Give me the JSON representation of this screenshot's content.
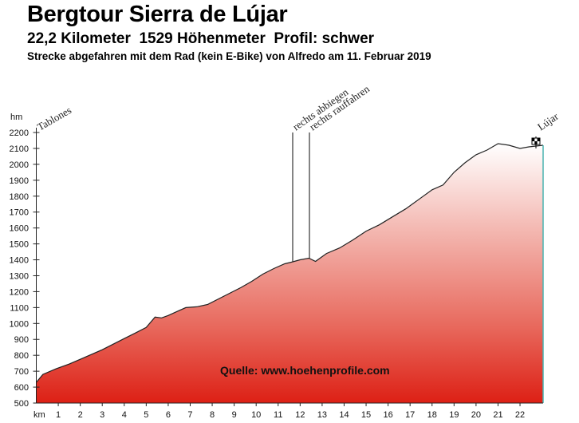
{
  "header": {
    "title": "Bergtour Sierra de Lújar",
    "subtitle": "22,2 Kilometer  1529 Höhenmeter  Profil: schwer",
    "description": "Strecke abgefahren mit dem Rad (kein E-Bike) von Alfredo am 11. Februar 2019"
  },
  "chart": {
    "source_label": "Quelle: www.hoehenprofile.com",
    "y_unit": "hm",
    "x_unit": "km",
    "start_label": "Tablones",
    "end_label": "Lújar",
    "waypoint_1": "rechts abbiegen",
    "waypoint_2": "rechts rauffahren",
    "fill_top_color": "#ffffff",
    "fill_bottom_color": "#dd2015",
    "line_color": "#222222",
    "end_line_color": "#4ab3b0"
  },
  "chart_data": {
    "type": "area",
    "title": "Bergtour Sierra de Lújar",
    "xlabel": "km",
    "ylabel": "hm",
    "xlim": [
      0,
      23
    ],
    "ylim": [
      500,
      2200
    ],
    "grid": false,
    "legend": "none",
    "x_ticks": [
      1,
      2,
      3,
      4,
      5,
      6,
      7,
      8,
      9,
      10,
      11,
      12,
      13,
      14,
      15,
      16,
      17,
      18,
      19,
      20,
      21,
      22
    ],
    "y_ticks": [
      500,
      600,
      700,
      800,
      900,
      1000,
      1100,
      1200,
      1300,
      1400,
      1500,
      1600,
      1700,
      1800,
      1900,
      2000,
      2100,
      2200
    ],
    "x": [
      0,
      0.3,
      0.9,
      1.5,
      2.0,
      2.5,
      3.0,
      3.5,
      4.0,
      4.5,
      5.0,
      5.4,
      5.7,
      6.0,
      6.4,
      6.8,
      7.3,
      7.8,
      8.3,
      8.8,
      9.3,
      9.8,
      10.3,
      10.8,
      11.3,
      11.6,
      12.0,
      12.4,
      12.7,
      13.2,
      13.8,
      14.4,
      15.0,
      15.6,
      16.2,
      16.8,
      17.4,
      18.0,
      18.5,
      19.0,
      19.5,
      20.0,
      20.5,
      21.0,
      21.5,
      22.0,
      22.4,
      23.0
    ],
    "values": [
      630,
      680,
      715,
      745,
      775,
      805,
      835,
      870,
      905,
      940,
      975,
      1040,
      1035,
      1050,
      1075,
      1100,
      1105,
      1120,
      1155,
      1190,
      1225,
      1265,
      1310,
      1345,
      1375,
      1385,
      1400,
      1410,
      1390,
      1440,
      1475,
      1525,
      1580,
      1620,
      1670,
      1720,
      1780,
      1840,
      1870,
      1950,
      2010,
      2060,
      2090,
      2130,
      2120,
      2100,
      2110,
      2120
    ],
    "annotations": [
      {
        "x": 0,
        "label": "Tablones"
      },
      {
        "x": 11.6,
        "label": "rechts abbiegen"
      },
      {
        "x": 12.4,
        "label": "rechts rauffahren"
      },
      {
        "x": 22.8,
        "label": "Lújar"
      }
    ]
  }
}
